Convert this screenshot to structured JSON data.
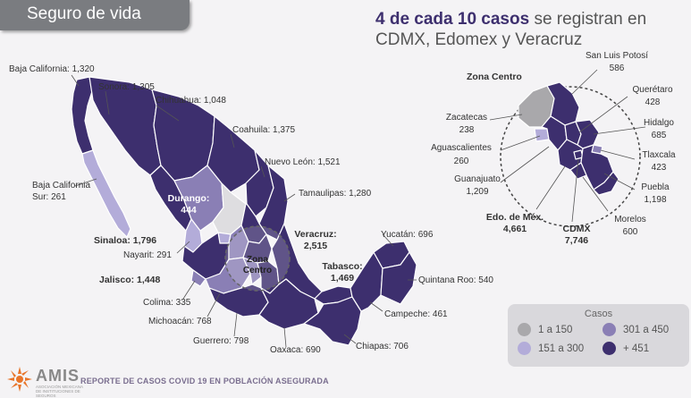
{
  "tag": "Seguro de vida",
  "headline": {
    "bold": "4 de cada 10 casos",
    "rest": " se registran en CDMX, Edomex y Veracruz"
  },
  "states": {
    "baja_california": "Baja California: 1,320",
    "sonora": "Sonora: 1,305",
    "chihuahua": "Chihuahua: 1,048",
    "coahuila": "Coahuila: 1,375",
    "nuevo_leon": "Nuevo León: 1,521",
    "tamaulipas": "Tamaulipas: 1,280",
    "bcs_1": "Baja California",
    "bcs_2": "Sur: 261",
    "durango_1": "Durango:",
    "durango_2": "444",
    "sinaloa": "Sinaloa: 1,796",
    "nayarit": "Nayarit: 291",
    "jalisco": "Jalisco: 1,448",
    "colima": "Colima: 335",
    "michoacan": "Michoacán: 768",
    "guerrero": "Guerrero: 798",
    "oaxaca": "Oaxaca: 690",
    "chiapas": "Chiapas: 706",
    "campeche": "Campeche: 461",
    "quintana_roo": "Quintana Roo: 540",
    "yucatan": "Yucatán: 696",
    "tabasco_1": "Tabasco:",
    "tabasco_2": "1,469",
    "veracruz_1": "Veracruz:",
    "veracruz_2": "2,515",
    "zona_centro_1": "Zona",
    "zona_centro_2": "Centro"
  },
  "inset": {
    "title": "Zona Centro",
    "slp_1": "San Luis Potosí",
    "slp_2": "586",
    "queretaro_1": "Querétaro",
    "queretaro_2": "428",
    "hidalgo_1": "Hidalgo",
    "hidalgo_2": "685",
    "tlaxcala_1": "Tlaxcala",
    "tlaxcala_2": "423",
    "puebla_1": "Puebla",
    "puebla_2": "1,198",
    "morelos_1": "Morelos",
    "morelos_2": "600",
    "cdmx_1": "CDMX",
    "cdmx_2": "7,746",
    "edomex_1": "Edo. de Méx.",
    "edomex_2": "4,661",
    "guanajuato_1": "Guanajuato",
    "guanajuato_2": "1,209",
    "aguascalientes_1": "Aguascalientes",
    "aguascalientes_2": "260",
    "zacatecas_1": "Zacatecas",
    "zacatecas_2": "238"
  },
  "legend": {
    "title": "Casos",
    "items": [
      {
        "label": "1 a 150",
        "color": "#a9a8ab"
      },
      {
        "label": "301 a 450",
        "color": "#8a7fb5"
      },
      {
        "label": "151 a 300",
        "color": "#b3acd9"
      },
      {
        "label": "+ 451",
        "color": "#3d2f6e"
      }
    ]
  },
  "colors": {
    "dark": "#3d2f6e",
    "mid": "#8a7fb5",
    "light": "#b3acd9",
    "gray": "#a9a8ab"
  },
  "footer": {
    "brand": "AMIS",
    "sub": "ASOCIACIÓN MEXICANA DE INSTITUCIONES DE SEGUROS",
    "text": "REPORTE DE CASOS COVID 19 EN POBLACIÓN ASEGURADA"
  }
}
